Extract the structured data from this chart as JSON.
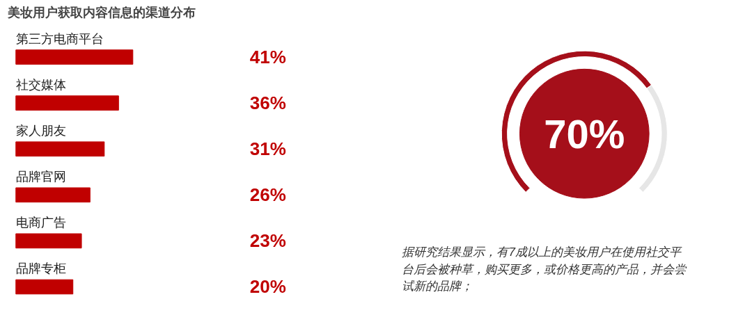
{
  "chart_data": [
    {
      "type": "bar",
      "orientation": "horizontal",
      "title": "美妆用户获取内容信息的渠道分布",
      "categories": [
        "第三方电商平台",
        "社交媒体",
        "家人朋友",
        "品牌官网",
        "电商广告",
        "品牌专柜"
      ],
      "values": [
        41,
        36,
        31,
        26,
        23,
        20
      ],
      "value_labels": [
        "41%",
        "36%",
        "31%",
        "26%",
        "23%",
        "20%"
      ],
      "color": "#c00000"
    },
    {
      "type": "donut",
      "categories": [
        null,
        null
      ],
      "values": [
        70,
        30
      ],
      "colors": [
        "#a50f1a",
        "#e6e6e6"
      ],
      "annotations": [
        {
          "text": "70%"
        },
        "据研究结果显示，有7成以上的美妆用户在使用社交平台后会被种草，购买更多，或价格更高的产品，并会尝试新的品牌；"
      ]
    }
  ]
}
